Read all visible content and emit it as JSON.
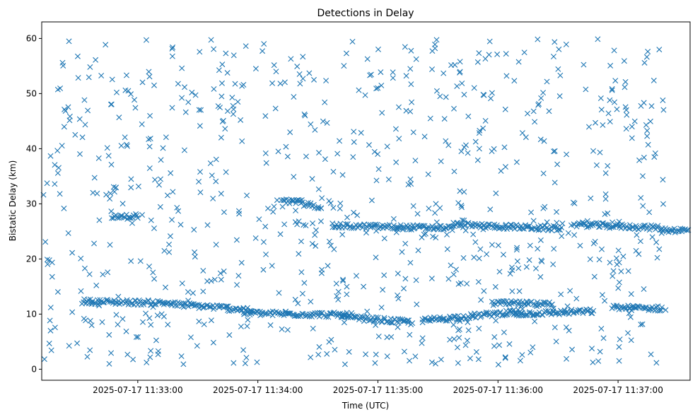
{
  "chart_data": {
    "type": "scatter",
    "title": "Detections in Delay",
    "xlabel": "Time (UTC)",
    "ylabel": "Bistatic Delay (km)",
    "x_axis_type": "time",
    "x_range": [
      "2025-07-17 11:32:12",
      "2025-07-17 11:37:36"
    ],
    "ylim": [
      -2,
      63
    ],
    "x_ticks": [
      {
        "value": "2025-07-17 11:33:00",
        "label": "2025-07-17 11:33:00"
      },
      {
        "value": "2025-07-17 11:34:00",
        "label": "2025-07-17 11:34:00"
      },
      {
        "value": "2025-07-17 11:35:00",
        "label": "2025-07-17 11:35:00"
      },
      {
        "value": "2025-07-17 11:36:00",
        "label": "2025-07-17 11:36:00"
      },
      {
        "value": "2025-07-17 11:37:00",
        "label": "2025-07-17 11:37:00"
      }
    ],
    "y_ticks": [
      0,
      10,
      20,
      30,
      40,
      50,
      60
    ],
    "grid": false,
    "legend": "none",
    "marker": "x",
    "color": "#1f77b4",
    "x_start": "2025-07-17 11:32:12",
    "x_end": "2025-07-17 11:37:24",
    "series": [
      {
        "name": "",
        "structure_notes": "dense horizontal tracks near 10-12 km and 25-27 km plus uniformly scattered clutter 0-60 km",
        "track_segments": [
          {
            "t0": 20,
            "t1": 65,
            "d0": 12.3,
            "d1": 12.0
          },
          {
            "t0": 65,
            "t1": 105,
            "d0": 11.8,
            "d1": 10.8
          },
          {
            "t0": 100,
            "t1": 155,
            "d0": 10.2,
            "d1": 9.8
          },
          {
            "t0": 150,
            "t1": 185,
            "d0": 9.5,
            "d1": 8.5
          },
          {
            "t0": 190,
            "t1": 240,
            "d0": 8.8,
            "d1": 10.5
          },
          {
            "t0": 225,
            "t1": 255,
            "d0": 12.0,
            "d1": 11.8
          },
          {
            "t0": 235,
            "t1": 275,
            "d0": 10.0,
            "d1": 10.5
          },
          {
            "t0": 285,
            "t1": 310,
            "d0": 11.2,
            "d1": 11.0
          },
          {
            "t0": 330,
            "t1": 345,
            "d0": 11.6,
            "d1": 11.6
          },
          {
            "t0": 355,
            "t1": 375,
            "d0": 12.3,
            "d1": 12.3
          },
          {
            "t0": 380,
            "t1": 400,
            "d0": 9.4,
            "d1": 9.4
          },
          {
            "t0": 385,
            "t1": 410,
            "d0": 11.0,
            "d1": 11.0
          },
          {
            "t0": 415,
            "t1": 430,
            "d0": 10.0,
            "d1": 10.0
          },
          {
            "t0": 35,
            "t1": 48,
            "d0": 27.5,
            "d1": 27.8
          },
          {
            "t0": 120,
            "t1": 130,
            "d0": 30.5,
            "d1": 30.3
          },
          {
            "t0": 130,
            "t1": 140,
            "d0": 30.0,
            "d1": 29.5
          },
          {
            "t0": 145,
            "t1": 205,
            "d0": 26.0,
            "d1": 25.6
          },
          {
            "t0": 205,
            "t1": 260,
            "d0": 26.2,
            "d1": 25.5
          },
          {
            "t0": 265,
            "t1": 310,
            "d0": 26.3,
            "d1": 25.6
          },
          {
            "t0": 310,
            "t1": 330,
            "d0": 25.3,
            "d1": 25.1
          },
          {
            "t0": 330,
            "t1": 400,
            "d0": 24.0,
            "d1": 22.5
          }
        ]
      }
    ]
  }
}
